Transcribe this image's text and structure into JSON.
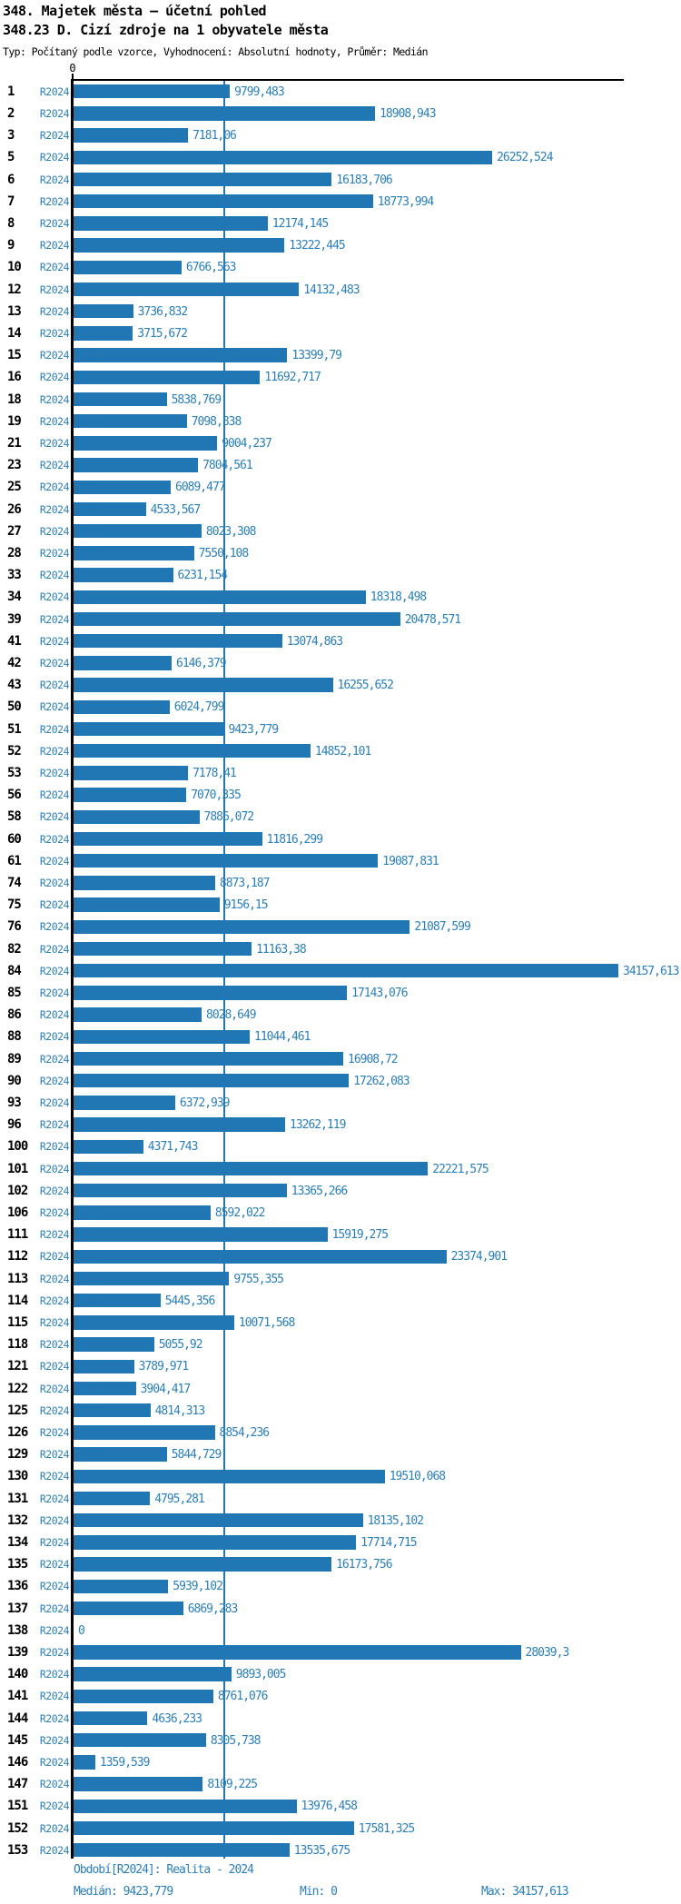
{
  "header": {
    "title": "348. Majetek města – účetní pohled",
    "subtitle": "348.23 D. Cizí zdroje na 1 obyvatele města",
    "meta": "Typ: Počítaný podle vzorce, Vyhodnocení: Absolutní hodnoty, Průměr: Medián"
  },
  "colors": {
    "bar": "#2077b4",
    "blue_text": "#2b7fba",
    "axis": "#000000"
  },
  "chart_data": {
    "type": "bar",
    "orientation": "horizontal",
    "series_label": "R2024",
    "axis_zero_label": "0",
    "xlim": [
      0,
      34157.613
    ],
    "median_value": 9423.779,
    "grid": false,
    "legend_position": "none",
    "categories": [
      "1",
      "2",
      "3",
      "5",
      "6",
      "7",
      "8",
      "9",
      "10",
      "12",
      "13",
      "14",
      "15",
      "16",
      "18",
      "19",
      "21",
      "23",
      "25",
      "26",
      "27",
      "28",
      "33",
      "34",
      "39",
      "41",
      "42",
      "43",
      "50",
      "51",
      "52",
      "53",
      "56",
      "58",
      "60",
      "61",
      "74",
      "75",
      "76",
      "82",
      "84",
      "85",
      "86",
      "88",
      "89",
      "90",
      "93",
      "96",
      "100",
      "101",
      "102",
      "106",
      "111",
      "112",
      "113",
      "114",
      "115",
      "118",
      "121",
      "122",
      "125",
      "126",
      "129",
      "130",
      "131",
      "132",
      "134",
      "135",
      "136",
      "137",
      "138",
      "139",
      "140",
      "141",
      "144",
      "145",
      "146",
      "147",
      "151",
      "152",
      "153"
    ],
    "values": [
      9799.483,
      18908.943,
      7181.06,
      26252.524,
      16183.706,
      18773.994,
      12174.145,
      13222.445,
      6766.563,
      14132.483,
      3736.832,
      3715.672,
      13399.79,
      11692.717,
      5838.769,
      7098.838,
      9004.237,
      7804.561,
      6089.477,
      4533.567,
      8023.308,
      7550.108,
      6231.154,
      18318.498,
      20478.571,
      13074.863,
      6146.379,
      16255.652,
      6024.799,
      9423.779,
      14852.101,
      7178.41,
      7070.335,
      7886.072,
      11816.299,
      19087.831,
      8873.187,
      9156.15,
      21087.599,
      11163.38,
      34157.613,
      17143.076,
      8028.649,
      11044.461,
      16908.72,
      17262.083,
      6372.939,
      13262.119,
      4371.743,
      22221.575,
      13365.266,
      8592.022,
      15919.275,
      23374.901,
      9755.355,
      5445.356,
      10071.568,
      5055.92,
      3789.971,
      3904.417,
      4814.313,
      8854.236,
      5844.729,
      19510.068,
      4795.281,
      18135.102,
      17714.715,
      16173.756,
      5939.102,
      6869.283,
      0,
      28039.3,
      9893.005,
      8761.076,
      4636.233,
      8305.738,
      1359.539,
      8109.225,
      13976.458,
      17581.325,
      13535.675
    ],
    "value_labels": [
      "9799,483",
      "18908,943",
      "7181,06",
      "26252,524",
      "16183,706",
      "18773,994",
      "12174,145",
      "13222,445",
      "6766,563",
      "14132,483",
      "3736,832",
      "3715,672",
      "13399,79",
      "11692,717",
      "5838,769",
      "7098,838",
      "9004,237",
      "7804,561",
      "6089,477",
      "4533,567",
      "8023,308",
      "7550,108",
      "6231,154",
      "18318,498",
      "20478,571",
      "13074,863",
      "6146,379",
      "16255,652",
      "6024,799",
      "9423,779",
      "14852,101",
      "7178,41",
      "7070,335",
      "7886,072",
      "11816,299",
      "19087,831",
      "8873,187",
      "9156,15",
      "21087,599",
      "11163,38",
      "34157,613",
      "17143,076",
      "8028,649",
      "11044,461",
      "16908,72",
      "17262,083",
      "6372,939",
      "13262,119",
      "4371,743",
      "22221,575",
      "13365,266",
      "8592,022",
      "15919,275",
      "23374,901",
      "9755,355",
      "5445,356",
      "10071,568",
      "5055,92",
      "3789,971",
      "3904,417",
      "4814,313",
      "8854,236",
      "5844,729",
      "19510,068",
      "4795,281",
      "18135,102",
      "17714,715",
      "16173,756",
      "5939,102",
      "6869,283",
      "0",
      "28039,3",
      "9893,005",
      "8761,076",
      "4636,233",
      "8305,738",
      "1359,539",
      "8109,225",
      "13976,458",
      "17581,325",
      "13535,675"
    ]
  },
  "footer": {
    "period": "Období[R2024]: Realita - 2024",
    "median": "Medián: 9423,779",
    "min": "Min: 0",
    "max": "Max: 34157,613"
  }
}
